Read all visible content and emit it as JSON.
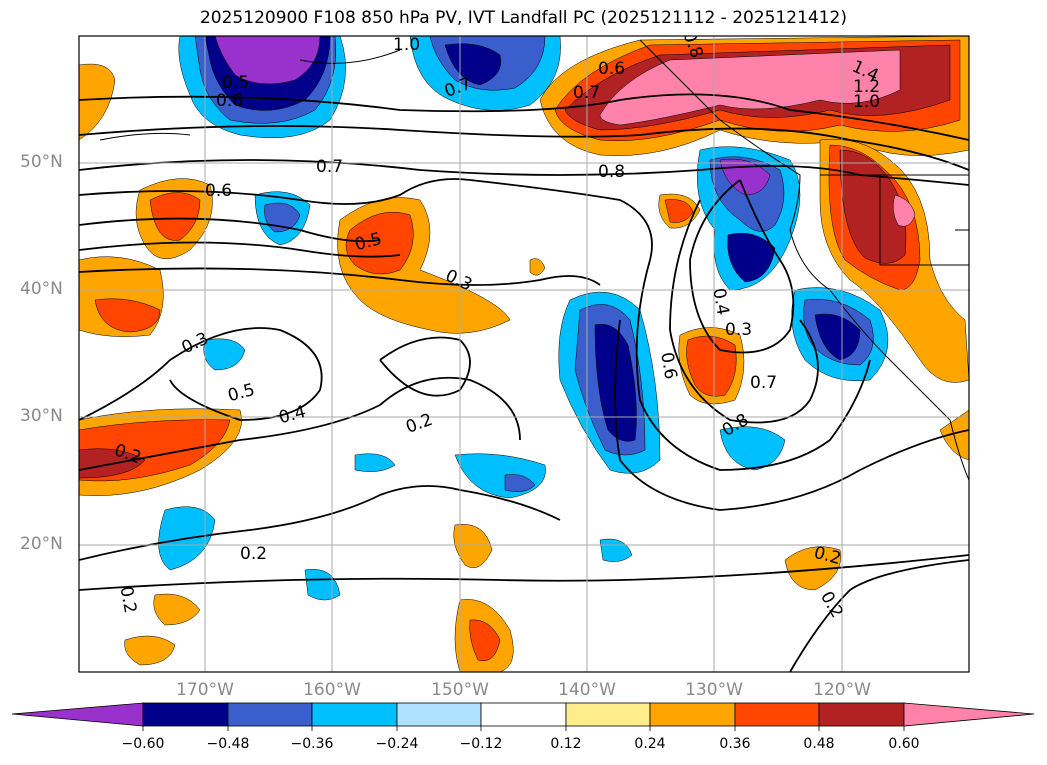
{
  "title": "2025120900 F108 850 hPa PV, IVT Landfall PC (2025121112 - 2025121412)",
  "axes": {
    "lat_labels": [
      "50°N",
      "40°N",
      "30°N",
      "20°N"
    ],
    "lon_labels": [
      "170°W",
      "160°W",
      "150°W",
      "140°W",
      "130°W",
      "120°W"
    ]
  },
  "contour_labels": [
    "0.5",
    "0.6",
    "1.0",
    "0.7",
    "0.6",
    "0.7",
    "0.8",
    "1.4",
    "1.2",
    "1.0",
    "0.7",
    "0.8",
    "0.6",
    "0.5",
    "0.3",
    "0.4",
    "0.3",
    "0.6",
    "0.7",
    "0.8",
    "0.3",
    "0.5",
    "0.4",
    "0.2",
    "0.2",
    "0.2",
    "0.2",
    "0.2",
    "0.2"
  ],
  "colorbar": {
    "ticks": [
      "−0.60",
      "−0.48",
      "−0.36",
      "−0.24",
      "−0.12",
      "0.12",
      "0.24",
      "0.36",
      "0.48",
      "0.60"
    ],
    "colors": [
      "#9932cc",
      "#00008b",
      "#3a5fcd",
      "#00bfff",
      "#b0e2ff",
      "#ffffff",
      "#ffec8b",
      "#ffa500",
      "#ff4500",
      "#b22222",
      "#ff82ab"
    ]
  },
  "chart_data": {
    "type": "map",
    "title": "2025120900 F108 850 hPa PV, IVT Landfall PC (2025121112 - 2025121412)",
    "projection": "cylindrical",
    "lon_range": [
      -180,
      -110
    ],
    "lat_range": [
      10,
      60
    ],
    "grid": true,
    "contour_variable": "850 hPa PV",
    "fill_variable": "IVT Landfall PC",
    "fill_levels": [
      -0.6,
      -0.48,
      -0.36,
      -0.24,
      -0.12,
      0.12,
      0.24,
      0.36,
      0.48,
      0.6
    ],
    "colorbar_extend": "both"
  }
}
